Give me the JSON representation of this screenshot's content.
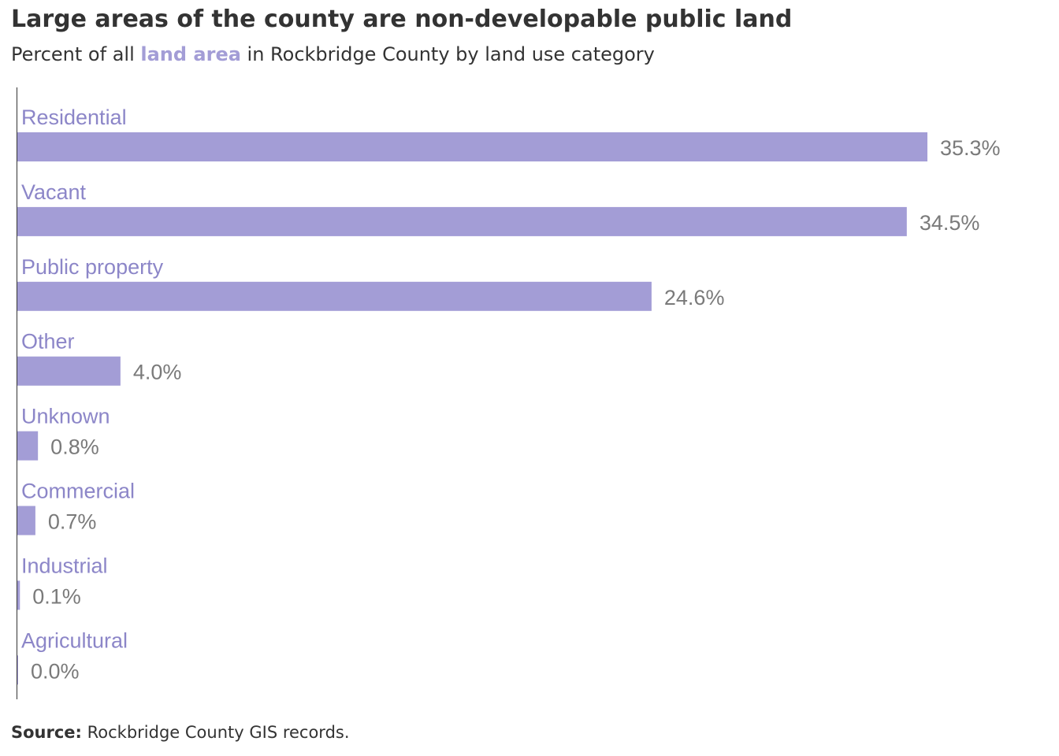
{
  "title": "Large areas of the county are non-developable public land",
  "subtitle": {
    "prefix": "Percent of all ",
    "highlight": "land area",
    "suffix": " in Rockbridge County by land use category"
  },
  "source": {
    "label": "Source:",
    "text": " Rockbridge  County GIS records."
  },
  "colors": {
    "bar": "#a39dd6",
    "category_label": "#8c86c8",
    "value_label": "#7a7a7a",
    "axis": "#333333",
    "text": "#333333"
  },
  "chart_data": {
    "type": "bar",
    "orientation": "horizontal",
    "categories": [
      "Residential",
      "Vacant",
      "Public property",
      "Other",
      "Unknown",
      "Commercial",
      "Industrial",
      "Agricultural"
    ],
    "values": [
      35.3,
      34.5,
      24.6,
      4.0,
      0.8,
      0.7,
      0.1,
      0.0
    ],
    "value_labels": [
      "35.3%",
      "34.5%",
      "24.6%",
      "4.0%",
      "0.8%",
      "0.7%",
      "0.1%",
      "0.0%"
    ],
    "unit": "%",
    "xlim": [
      0,
      35.3
    ],
    "grid": false,
    "legend": "none"
  }
}
